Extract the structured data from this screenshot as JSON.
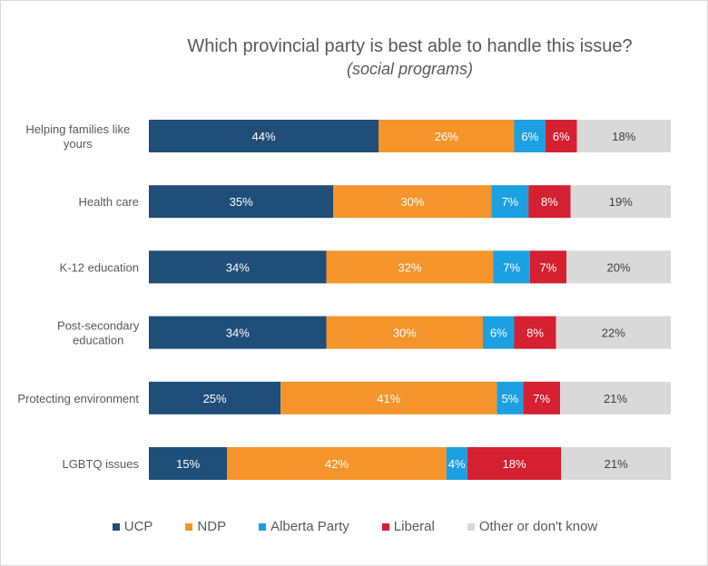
{
  "colors": {
    "UCP": "#1f4e79",
    "NDP": "#f4942a",
    "Alberta Party": "#1ba1e2",
    "Liberal": "#d42030",
    "Other or don't know": "#d9d9d9",
    "label_dark_bg": "#ffffff",
    "label_light_bg": "#404040",
    "axis_text": "#595959"
  },
  "chart_data": {
    "type": "bar",
    "orientation": "horizontal",
    "stacked": true,
    "normalized_to_100": true,
    "title": "Which provincial party is best able to handle this issue?",
    "subtitle": "(social programs)",
    "categories": [
      "Helping families like yours",
      "Health care",
      "K-12 education",
      "Post-secondary education",
      "Protecting environment",
      "LGBTQ issues"
    ],
    "series": [
      {
        "name": "UCP",
        "values": [
          44,
          35,
          34,
          34,
          25,
          15
        ]
      },
      {
        "name": "NDP",
        "values": [
          26,
          30,
          32,
          30,
          41,
          42
        ]
      },
      {
        "name": "Alberta Party",
        "values": [
          6,
          7,
          7,
          6,
          5,
          4
        ]
      },
      {
        "name": "Liberal",
        "values": [
          6,
          8,
          7,
          8,
          7,
          18
        ]
      },
      {
        "name": "Other or don't know",
        "values": [
          18,
          19,
          20,
          22,
          21,
          21
        ]
      }
    ],
    "value_suffix": "%",
    "grid": false,
    "legend_position": "bottom"
  }
}
